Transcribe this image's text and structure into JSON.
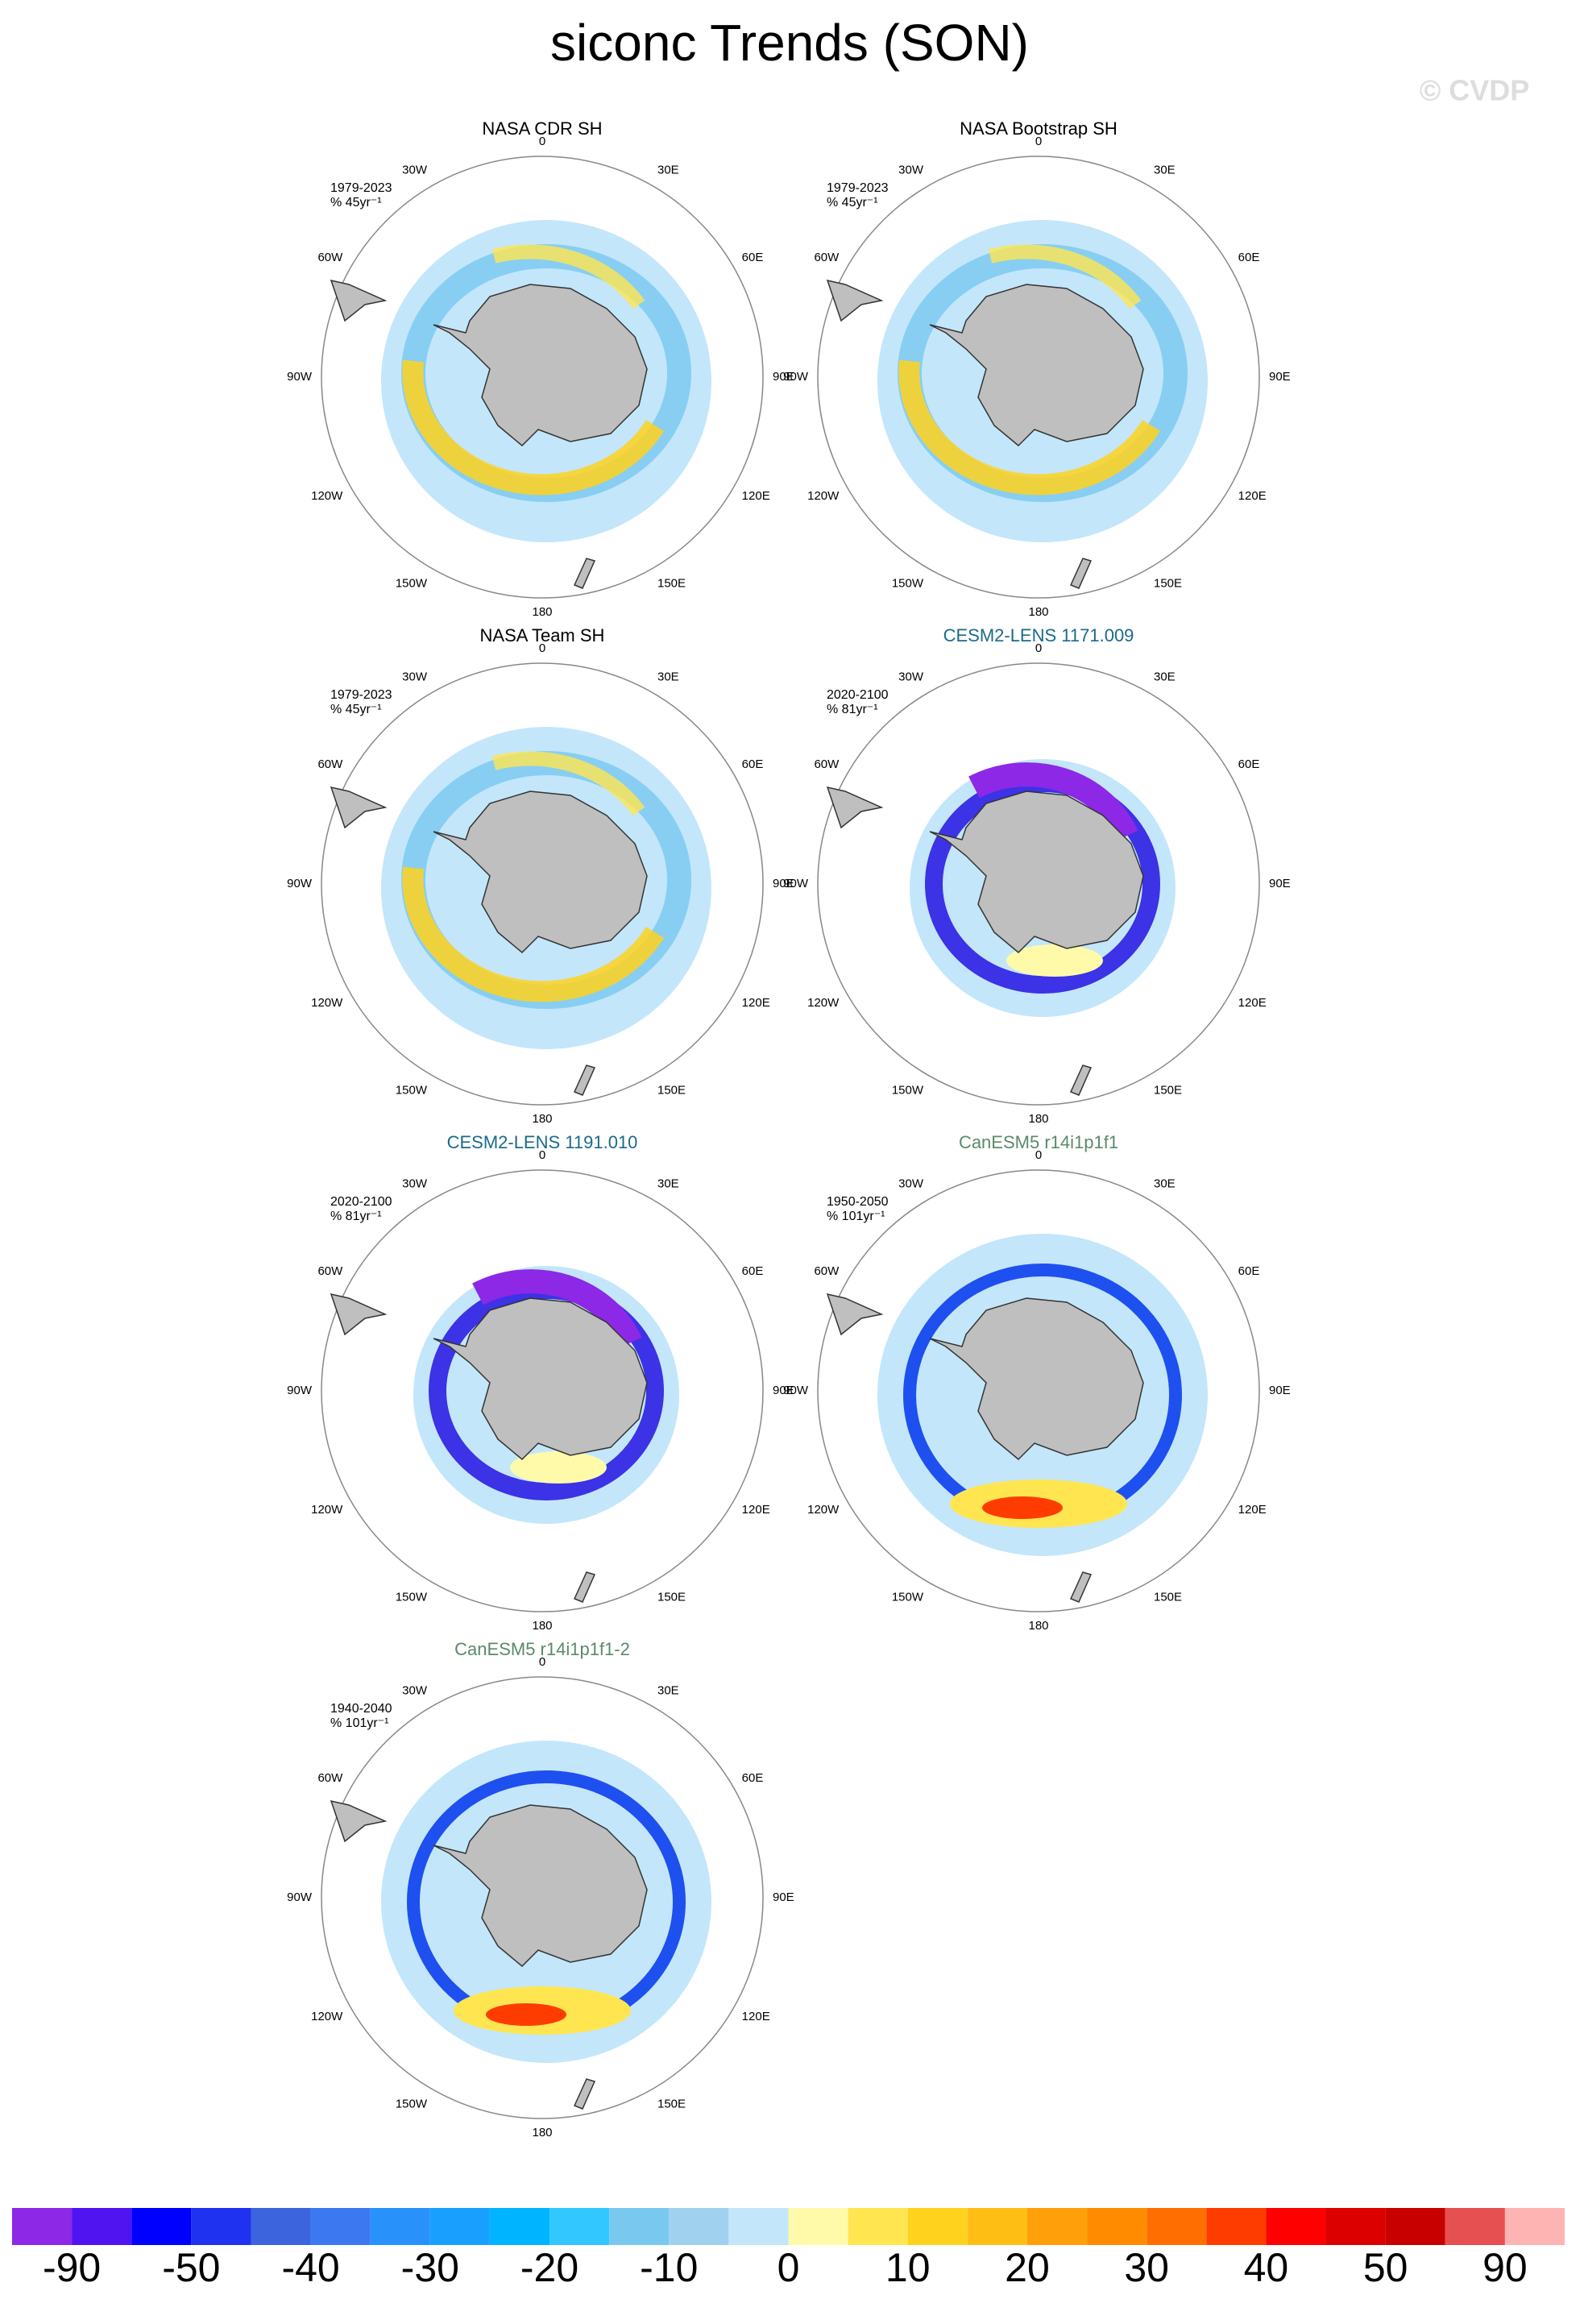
{
  "title": "siconc Trends (SON)",
  "watermark": "© CVDP",
  "longitude_labels": [
    "0",
    "30E",
    "60E",
    "90E",
    "120E",
    "150E",
    "180",
    "150W",
    "120W",
    "90W",
    "60W",
    "30W"
  ],
  "panels": [
    {
      "title": "NASA CDR SH",
      "period": "1979-2023",
      "units": "% 45yr⁻¹"
    },
    {
      "title": "NASA Bootstrap SH",
      "period": "1979-2023",
      "units": "% 45yr⁻¹"
    },
    {
      "title": "NASA Team SH",
      "period": "1979-2023",
      "units": "% 45yr⁻¹"
    },
    {
      "title": "CESM2-LENS 1171.009",
      "period": "2020-2100",
      "units": "% 81yr⁻¹"
    },
    {
      "title": "CESM2-LENS 1191.010",
      "period": "2020-2100",
      "units": "% 81yr⁻¹"
    },
    {
      "title": "CanESM5 r14i1p1f1",
      "period": "1950-2050",
      "units": "% 101yr⁻¹"
    },
    {
      "title": "CanESM5 r14i1p1f1-2",
      "period": "1940-2040",
      "units": "% 101yr⁻¹"
    }
  ],
  "colorbar": {
    "colors": [
      "#8c28e6",
      "#5014f0",
      "#0000ff",
      "#1e32f0",
      "#3c64dc",
      "#3c78f0",
      "#2891fa",
      "#19a0ff",
      "#00b4ff",
      "#32c8ff",
      "#78c8f0",
      "#a0d2f0",
      "#c3e6fa",
      "#fffaaa",
      "#ffe650",
      "#ffd21e",
      "#ffbe14",
      "#ffa00a",
      "#ff8c00",
      "#ff6e00",
      "#ff3c00",
      "#ff0000",
      "#dc0000",
      "#c80000",
      "#e65050",
      "#ffb4b4"
    ],
    "labels": [
      "-90",
      "-50",
      "-40",
      "-30",
      "-20",
      "-10",
      "0",
      "10",
      "20",
      "30",
      "40",
      "50",
      "90"
    ]
  }
}
